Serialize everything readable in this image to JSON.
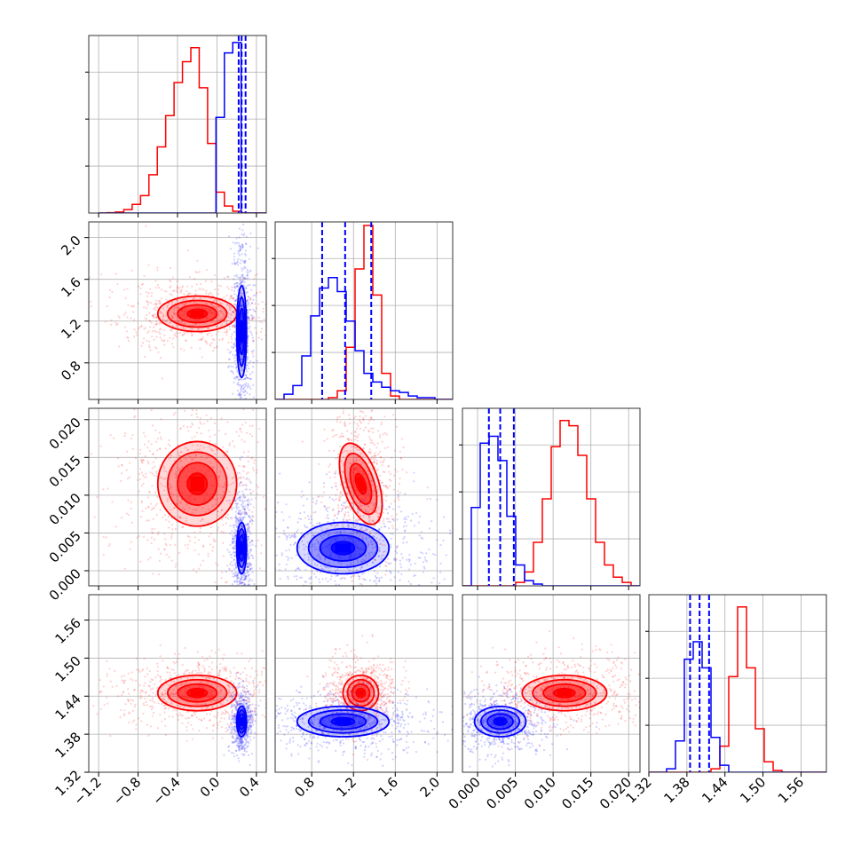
{
  "chart_data": {
    "type": "corner",
    "grid": true,
    "parameters": [
      {
        "range": [
          -1.3,
          0.5
        ],
        "ticks": [
          {
            "v": -1.2,
            "label": "−1.2"
          },
          {
            "v": -0.8,
            "label": "−0.8"
          },
          {
            "v": -0.4,
            "label": "−0.4"
          },
          {
            "v": 0.0,
            "label": "0.0"
          },
          {
            "v": 0.4,
            "label": "0.4"
          }
        ]
      },
      {
        "range": [
          0.45,
          2.15
        ],
        "ticks": [
          {
            "v": 0.8,
            "label": "0.8"
          },
          {
            "v": 1.2,
            "label": "1.2"
          },
          {
            "v": 1.6,
            "label": "1.6"
          },
          {
            "v": 2.0,
            "label": "2.0"
          }
        ]
      },
      {
        "range": [
          -0.002,
          0.0215
        ],
        "ticks": [
          {
            "v": 0.0,
            "label": "0.000"
          },
          {
            "v": 0.005,
            "label": "0.005"
          },
          {
            "v": 0.01,
            "label": "0.010"
          },
          {
            "v": 0.015,
            "label": "0.015"
          },
          {
            "v": 0.02,
            "label": "0.020"
          }
        ]
      },
      {
        "range": [
          1.32,
          1.6
        ],
        "ticks": [
          {
            "v": 1.32,
            "label": "1.32"
          },
          {
            "v": 1.38,
            "label": "1.38"
          },
          {
            "v": 1.44,
            "label": "1.44"
          },
          {
            "v": 1.5,
            "label": "1.50"
          },
          {
            "v": 1.56,
            "label": "1.56"
          }
        ]
      }
    ],
    "series": [
      {
        "color": "#ff0000",
        "means": [
          -0.2,
          1.27,
          0.0115,
          1.445
        ],
        "sds": [
          0.2,
          0.085,
          0.0028,
          0.014
        ],
        "histograms": [
          {
            "edges_range": [
              -1.2,
              0.5
            ],
            "counts": [
              0,
              0.002,
              0.006,
              0.02,
              0.05,
              0.1,
              0.22,
              0.38,
              0.56,
              0.75,
              0.87,
              0.95,
              0.72,
              0.4,
              0.12,
              0.04,
              0.01,
              0,
              0,
              0
            ]
          },
          {
            "edges_range": [
              0.45,
              2.15
            ],
            "counts": [
              0,
              0,
              0,
              0,
              0,
              0,
              0.01,
              0.05,
              0.3,
              0.75,
              1.0,
              0.6,
              0.15,
              0.02,
              0,
              0,
              0,
              0,
              0,
              0
            ]
          },
          {
            "edges_range": [
              -0.002,
              0.0215
            ],
            "counts": [
              0,
              0,
              0,
              0,
              0,
              0,
              0.02,
              0.08,
              0.25,
              0.5,
              0.8,
              0.95,
              0.92,
              0.75,
              0.5,
              0.25,
              0.12,
              0.05,
              0.02,
              0
            ]
          },
          {
            "edges_range": [
              1.32,
              1.6
            ],
            "counts": [
              0,
              0,
              0,
              0,
              0,
              0,
              0,
              0.02,
              0.15,
              0.55,
              0.95,
              0.6,
              0.25,
              0.06,
              0.01,
              0,
              0,
              0,
              0,
              0
            ]
          }
        ]
      },
      {
        "color": "#0000ff",
        "means": [
          0.25,
          1.1,
          0.003,
          1.4
        ],
        "sds": [
          0.025,
          0.22,
          0.0017,
          0.012
        ],
        "quantile_lines": [
          [
            0.22,
            0.25,
            0.29
          ],
          [
            0.9,
            1.12,
            1.37
          ],
          [
            0.0015,
            0.003,
            0.0048
          ],
          [
            1.385,
            1.4,
            1.415
          ]
        ],
        "histograms": [
          {
            "edges_range": [
              -1.2,
              0.5
            ],
            "counts": [
              0,
              0,
              0,
              0,
              0,
              0,
              0,
              0,
              0,
              0,
              0,
              0,
              0,
              0,
              0.55,
              0.92,
              0.98,
              0,
              0,
              0
            ]
          },
          {
            "edges_range": [
              0.45,
              2.15
            ],
            "counts": [
              0,
              0.03,
              0.08,
              0.25,
              0.48,
              0.64,
              0.7,
              0.62,
              0.45,
              0.28,
              0.15,
              0.1,
              0.07,
              0.05,
              0.04,
              0.02,
              0.01,
              0.01,
              0,
              0
            ]
          },
          {
            "edges_range": [
              -0.002,
              0.0215
            ],
            "counts": [
              0,
              0.45,
              0.82,
              0.86,
              0.72,
              0.4,
              0.12,
              0.03,
              0.01,
              0,
              0,
              0,
              0,
              0,
              0,
              0,
              0,
              0,
              0,
              0
            ]
          },
          {
            "edges_range": [
              1.32,
              1.6
            ],
            "counts": [
              0,
              0,
              0.02,
              0.18,
              0.65,
              0.75,
              0.6,
              0.2,
              0.04,
              0,
              0,
              0,
              0,
              0,
              0,
              0,
              0,
              0,
              0,
              0
            ]
          }
        ]
      }
    ]
  }
}
